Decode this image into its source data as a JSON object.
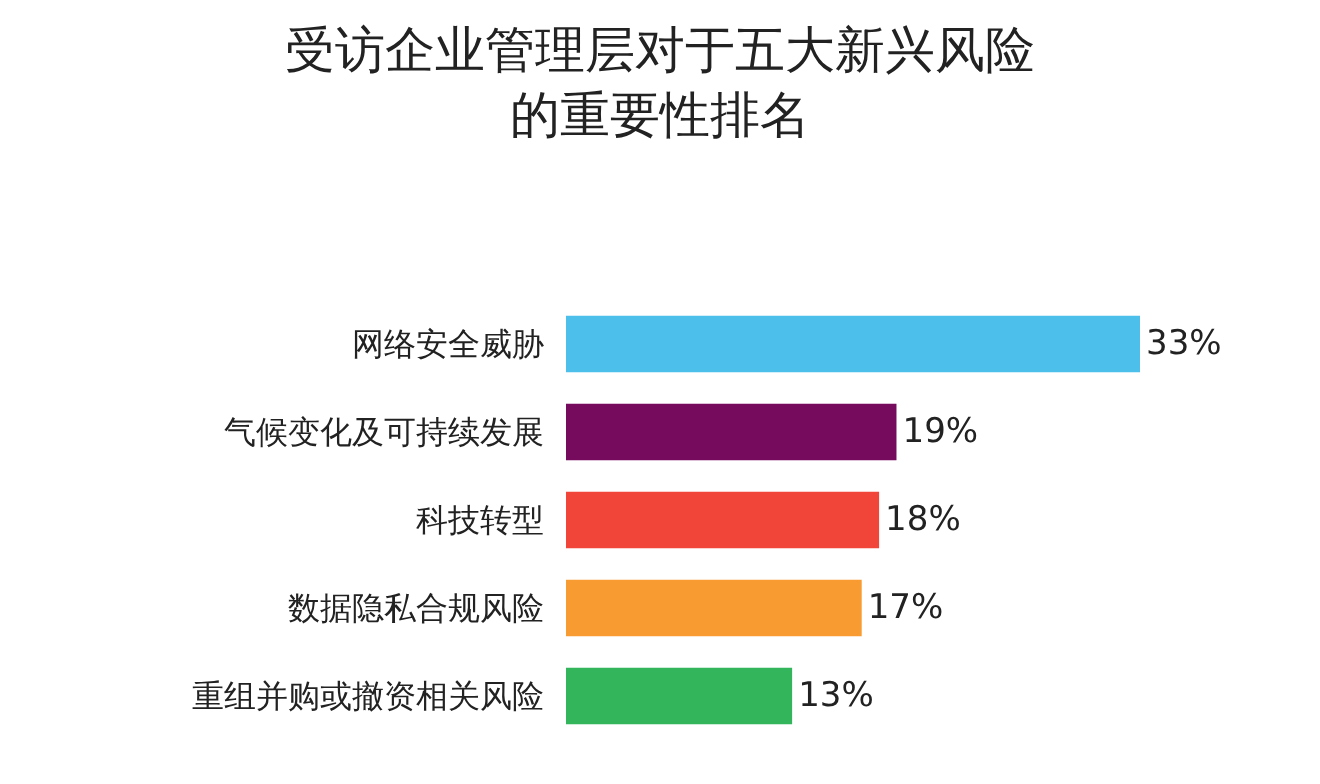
{
  "chart_data": {
    "type": "bar",
    "orientation": "horizontal",
    "title": "受访企业管理层对于五大新兴风险的重要性排名",
    "categories": [
      "网络安全威胁",
      "气候变化及可持续发展",
      "科技转型",
      "数据隐私合规风险",
      "重组并购或撤资相关风险"
    ],
    "values": [
      33,
      19,
      18,
      17,
      13
    ],
    "value_labels": [
      "33%",
      "19%",
      "18%",
      "17%",
      "13%"
    ],
    "colors": [
      "#4cc0ea",
      "#760a5c",
      "#f2453a",
      "#f89b30",
      "#33b55c"
    ],
    "legend": false
  }
}
